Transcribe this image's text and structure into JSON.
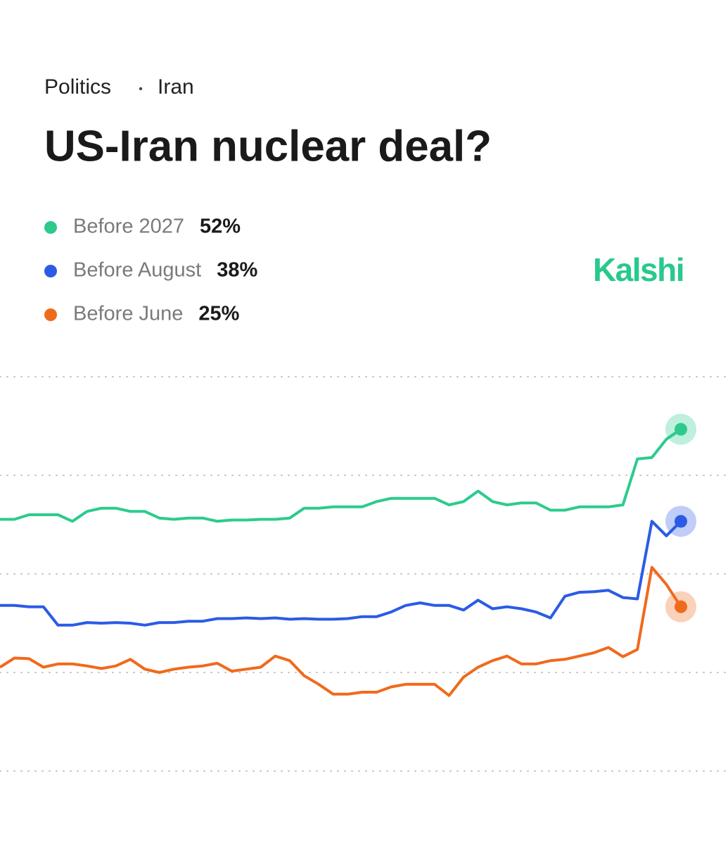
{
  "chart_data": {
    "type": "line",
    "breadcrumb": [
      "Politics",
      "Iran"
    ],
    "title": "US-Iran nuclear deal?",
    "brand": "Kalshi",
    "ylim": [
      0,
      60
    ],
    "yticks": [
      0,
      15,
      30,
      45,
      60
    ],
    "grid": true,
    "categories": [
      null,
      null,
      null,
      null,
      null,
      null,
      null,
      null,
      null,
      null,
      null,
      null,
      null,
      null,
      null,
      null,
      null,
      null,
      null,
      null,
      null,
      null,
      null,
      null,
      null,
      null,
      null,
      null,
      null,
      null,
      null,
      null,
      null,
      null,
      null,
      null,
      null,
      null,
      null,
      null,
      null,
      null,
      null,
      null,
      null,
      null,
      null,
      null
    ],
    "series": [
      {
        "name": "Before 2027",
        "color": "#2ccb8d",
        "latest": {
          "value": 52,
          "label": "52%"
        },
        "values": [
          38.3,
          38.3,
          39,
          39,
          39,
          38,
          39.5,
          40,
          40,
          39.5,
          39.5,
          38.5,
          38.3,
          38.5,
          38.5,
          38,
          38.2,
          38.2,
          38.3,
          38.3,
          38.5,
          40,
          40,
          40.2,
          40.2,
          40.2,
          41,
          41.5,
          41.5,
          41.5,
          41.5,
          40.5,
          41,
          42.6,
          41,
          40.5,
          40.8,
          40.8,
          39.7,
          39.7,
          40.2,
          40.2,
          40.2,
          40.5,
          47.5,
          47.7,
          50.5,
          52
        ]
      },
      {
        "name": "Before August",
        "color": "#2b5be6",
        "latest": {
          "value": 38,
          "label": "38%"
        },
        "values": [
          25.2,
          25.2,
          25,
          25,
          22.2,
          22.2,
          22.6,
          22.5,
          22.6,
          22.5,
          22.2,
          22.6,
          22.6,
          22.8,
          22.8,
          23.2,
          23.2,
          23.3,
          23.2,
          23.3,
          23.1,
          23.2,
          23.1,
          23.1,
          23.2,
          23.5,
          23.5,
          24.2,
          25.2,
          25.6,
          25.2,
          25.2,
          24.5,
          26,
          24.7,
          25,
          24.7,
          24.2,
          23.3,
          26.6,
          27.2,
          27.3,
          27.5,
          26.4,
          26.2,
          38,
          35.8,
          38
        ]
      },
      {
        "name": "Before June",
        "color": "#f06a1c",
        "latest": {
          "value": 25,
          "label": "25%"
        },
        "values": [
          15.8,
          17.2,
          17.1,
          15.8,
          16.3,
          16.3,
          16,
          15.6,
          16,
          17,
          15.5,
          15,
          15.5,
          15.8,
          16,
          16.4,
          15.2,
          15.5,
          15.8,
          17.5,
          16.8,
          14.5,
          13.2,
          11.7,
          11.7,
          12,
          12,
          12.8,
          13.2,
          13.2,
          13.2,
          11.5,
          14.3,
          15.8,
          16.8,
          17.5,
          16.3,
          16.3,
          16.8,
          17,
          17.5,
          18,
          18.8,
          17.4,
          18.5,
          31,
          28.4,
          25
        ]
      }
    ]
  }
}
